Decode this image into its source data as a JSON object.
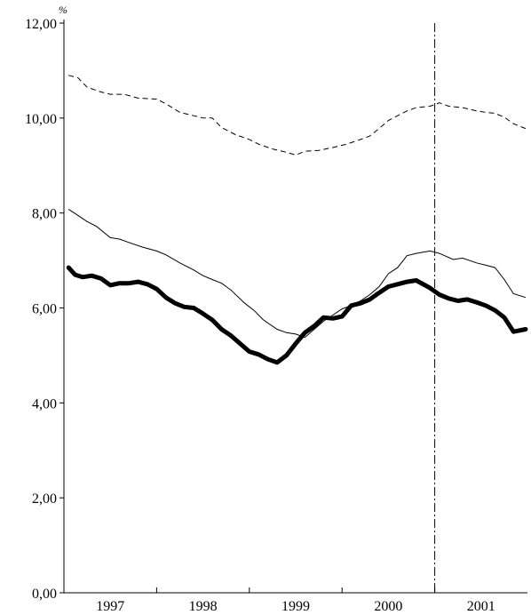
{
  "chart_data": {
    "type": "line",
    "title": "",
    "xlabel": "",
    "ylabel": "",
    "unit_label": "%",
    "ylim": [
      0,
      12
    ],
    "xlim": [
      1996.5,
      2001.5
    ],
    "y_ticks": [
      "0,00",
      "2,00",
      "4,00",
      "6,00",
      "8,00",
      "10,00",
      "12,00"
    ],
    "x_ticks": [
      "1997",
      "1998",
      "1999",
      "2000",
      "2001"
    ],
    "x_tick_values": [
      1997,
      1998,
      1999,
      2000,
      2001
    ],
    "vertical_marker_x": 2000.5,
    "legend": "none",
    "grid": false,
    "series": [
      {
        "style": "dashed",
        "color": "#000000",
        "points": [
          [
            1996.55,
            10.9
          ],
          [
            1996.65,
            10.85
          ],
          [
            1996.75,
            10.65
          ],
          [
            1996.9,
            10.55
          ],
          [
            1997.0,
            10.5
          ],
          [
            1997.15,
            10.5
          ],
          [
            1997.3,
            10.42
          ],
          [
            1997.5,
            10.4
          ],
          [
            1997.6,
            10.3
          ],
          [
            1997.75,
            10.12
          ],
          [
            1997.9,
            10.05
          ],
          [
            1998.0,
            10.0
          ],
          [
            1998.1,
            10.0
          ],
          [
            1998.2,
            9.8
          ],
          [
            1998.35,
            9.65
          ],
          [
            1998.5,
            9.55
          ],
          [
            1998.6,
            9.45
          ],
          [
            1998.75,
            9.35
          ],
          [
            1998.9,
            9.28
          ],
          [
            1999.0,
            9.22
          ],
          [
            1999.1,
            9.3
          ],
          [
            1999.25,
            9.32
          ],
          [
            1999.4,
            9.38
          ],
          [
            1999.55,
            9.45
          ],
          [
            1999.7,
            9.55
          ],
          [
            1999.8,
            9.62
          ],
          [
            1999.9,
            9.78
          ],
          [
            2000.0,
            9.95
          ],
          [
            2000.1,
            10.05
          ],
          [
            2000.2,
            10.15
          ],
          [
            2000.3,
            10.22
          ],
          [
            2000.45,
            10.25
          ],
          [
            2000.55,
            10.32
          ],
          [
            2000.65,
            10.25
          ],
          [
            2000.8,
            10.22
          ],
          [
            2000.95,
            10.15
          ],
          [
            2001.05,
            10.12
          ],
          [
            2001.15,
            10.1
          ],
          [
            2001.25,
            10.02
          ],
          [
            2001.35,
            9.88
          ],
          [
            2001.48,
            9.78
          ]
        ]
      },
      {
        "style": "thin",
        "color": "#000000",
        "points": [
          [
            1996.55,
            8.08
          ],
          [
            1996.65,
            7.95
          ],
          [
            1996.75,
            7.82
          ],
          [
            1996.85,
            7.72
          ],
          [
            1997.0,
            7.48
          ],
          [
            1997.1,
            7.45
          ],
          [
            1997.2,
            7.38
          ],
          [
            1997.35,
            7.28
          ],
          [
            1997.5,
            7.2
          ],
          [
            1997.6,
            7.12
          ],
          [
            1997.75,
            6.95
          ],
          [
            1997.9,
            6.8
          ],
          [
            1998.0,
            6.68
          ],
          [
            1998.1,
            6.6
          ],
          [
            1998.2,
            6.52
          ],
          [
            1998.3,
            6.38
          ],
          [
            1998.45,
            6.1
          ],
          [
            1998.55,
            5.95
          ],
          [
            1998.65,
            5.75
          ],
          [
            1998.8,
            5.55
          ],
          [
            1998.9,
            5.48
          ],
          [
            1999.0,
            5.45
          ],
          [
            1999.1,
            5.38
          ],
          [
            1999.2,
            5.55
          ],
          [
            1999.3,
            5.72
          ],
          [
            1999.4,
            5.85
          ],
          [
            1999.5,
            5.98
          ],
          [
            1999.6,
            6.05
          ],
          [
            1999.7,
            6.15
          ],
          [
            1999.8,
            6.28
          ],
          [
            1999.9,
            6.45
          ],
          [
            2000.0,
            6.72
          ],
          [
            2000.1,
            6.85
          ],
          [
            2000.2,
            7.1
          ],
          [
            2000.3,
            7.15
          ],
          [
            2000.45,
            7.2
          ],
          [
            2000.55,
            7.15
          ],
          [
            2000.7,
            7.02
          ],
          [
            2000.8,
            7.05
          ],
          [
            2000.95,
            6.95
          ],
          [
            2001.05,
            6.9
          ],
          [
            2001.15,
            6.85
          ],
          [
            2001.25,
            6.6
          ],
          [
            2001.35,
            6.3
          ],
          [
            2001.48,
            6.22
          ]
        ]
      },
      {
        "style": "thick",
        "color": "#000000",
        "points": [
          [
            1996.55,
            6.85
          ],
          [
            1996.62,
            6.7
          ],
          [
            1996.7,
            6.65
          ],
          [
            1996.8,
            6.68
          ],
          [
            1996.9,
            6.62
          ],
          [
            1997.0,
            6.48
          ],
          [
            1997.1,
            6.52
          ],
          [
            1997.2,
            6.52
          ],
          [
            1997.3,
            6.55
          ],
          [
            1997.4,
            6.5
          ],
          [
            1997.5,
            6.4
          ],
          [
            1997.6,
            6.22
          ],
          [
            1997.7,
            6.1
          ],
          [
            1997.8,
            6.02
          ],
          [
            1997.9,
            6.0
          ],
          [
            1998.0,
            5.88
          ],
          [
            1998.1,
            5.75
          ],
          [
            1998.2,
            5.55
          ],
          [
            1998.3,
            5.42
          ],
          [
            1998.4,
            5.25
          ],
          [
            1998.5,
            5.08
          ],
          [
            1998.6,
            5.02
          ],
          [
            1998.7,
            4.92
          ],
          [
            1998.8,
            4.85
          ],
          [
            1998.9,
            5.0
          ],
          [
            1999.0,
            5.25
          ],
          [
            1999.1,
            5.48
          ],
          [
            1999.2,
            5.62
          ],
          [
            1999.3,
            5.8
          ],
          [
            1999.4,
            5.78
          ],
          [
            1999.5,
            5.82
          ],
          [
            1999.6,
            6.05
          ],
          [
            1999.7,
            6.1
          ],
          [
            1999.8,
            6.18
          ],
          [
            1999.9,
            6.32
          ],
          [
            2000.0,
            6.45
          ],
          [
            2000.1,
            6.5
          ],
          [
            2000.2,
            6.55
          ],
          [
            2000.3,
            6.58
          ],
          [
            2000.45,
            6.42
          ],
          [
            2000.55,
            6.28
          ],
          [
            2000.65,
            6.2
          ],
          [
            2000.75,
            6.15
          ],
          [
            2000.85,
            6.18
          ],
          [
            2000.95,
            6.12
          ],
          [
            2001.05,
            6.05
          ],
          [
            2001.15,
            5.95
          ],
          [
            2001.25,
            5.8
          ],
          [
            2001.35,
            5.5
          ],
          [
            2001.48,
            5.55
          ]
        ]
      }
    ]
  }
}
